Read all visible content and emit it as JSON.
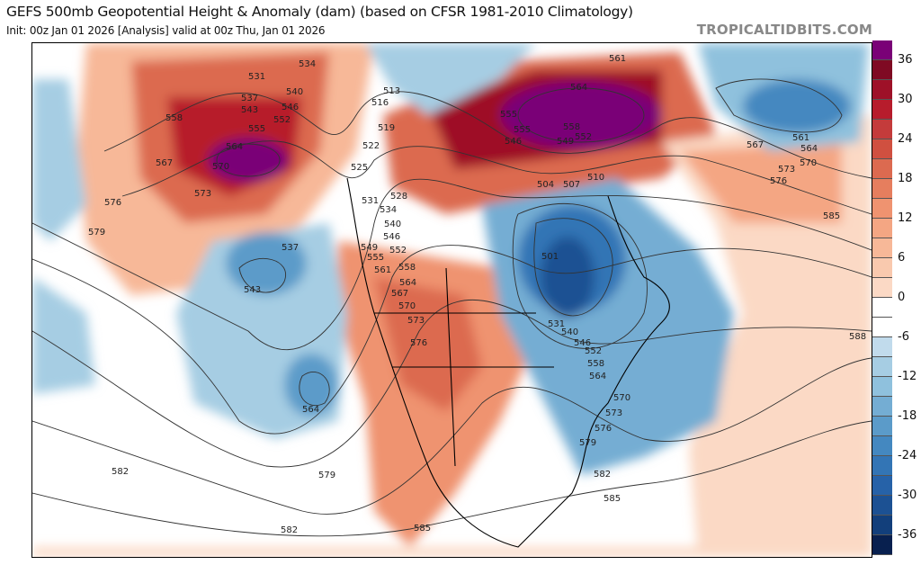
{
  "header": {
    "title": "GEFS 500mb Geopotential Height & Anomaly (dam) (based on CFSR 1981-2010 Climatology)",
    "subtitle": "Init: 00z Jan 01 2026   [Analysis]   valid at 00z Thu, Jan 01 2026",
    "brand": "TROPICALTIDBITS.COM"
  },
  "colorbar": {
    "ticks": [
      "36",
      "30",
      "24",
      "18",
      "12",
      "6",
      "0",
      "-6",
      "-12",
      "-18",
      "-24",
      "-30",
      "-36"
    ],
    "colors": [
      "#7a0177",
      "#7f0a23",
      "#9e1128",
      "#b71c2c",
      "#c43b3b",
      "#d05040",
      "#dc6a50",
      "#e67e5e",
      "#ef9370",
      "#f4a683",
      "#f7b898",
      "#f9c9ae",
      "#fbd9c5",
      "#ffffff",
      "#ffffff",
      "#c1dbec",
      "#a6cde3",
      "#8fc1dd",
      "#74add3",
      "#5b9bc9",
      "#4488c0",
      "#3375b5",
      "#2662a8",
      "#1c5193",
      "#123f7b",
      "#08204f"
    ]
  },
  "map": {
    "contour_labels": [
      "531",
      "534",
      "537",
      "540",
      "543",
      "546",
      "552",
      "555",
      "558",
      "564",
      "567",
      "570",
      "573",
      "576",
      "579",
      "537",
      "543",
      "564",
      "513",
      "516",
      "519",
      "522",
      "525",
      "528",
      "531",
      "534",
      "540",
      "546",
      "549",
      "552",
      "555",
      "558",
      "561",
      "564",
      "567",
      "570",
      "573",
      "576",
      "504",
      "507",
      "510",
      "501",
      "531",
      "540",
      "546",
      "552",
      "558",
      "564",
      "570",
      "573",
      "576",
      "579",
      "582",
      "585",
      "561",
      "564",
      "555",
      "546",
      "549",
      "552",
      "555",
      "558",
      "561",
      "564",
      "567",
      "570",
      "573",
      "576",
      "585",
      "588",
      "582",
      "579",
      "582",
      "585"
    ]
  }
}
